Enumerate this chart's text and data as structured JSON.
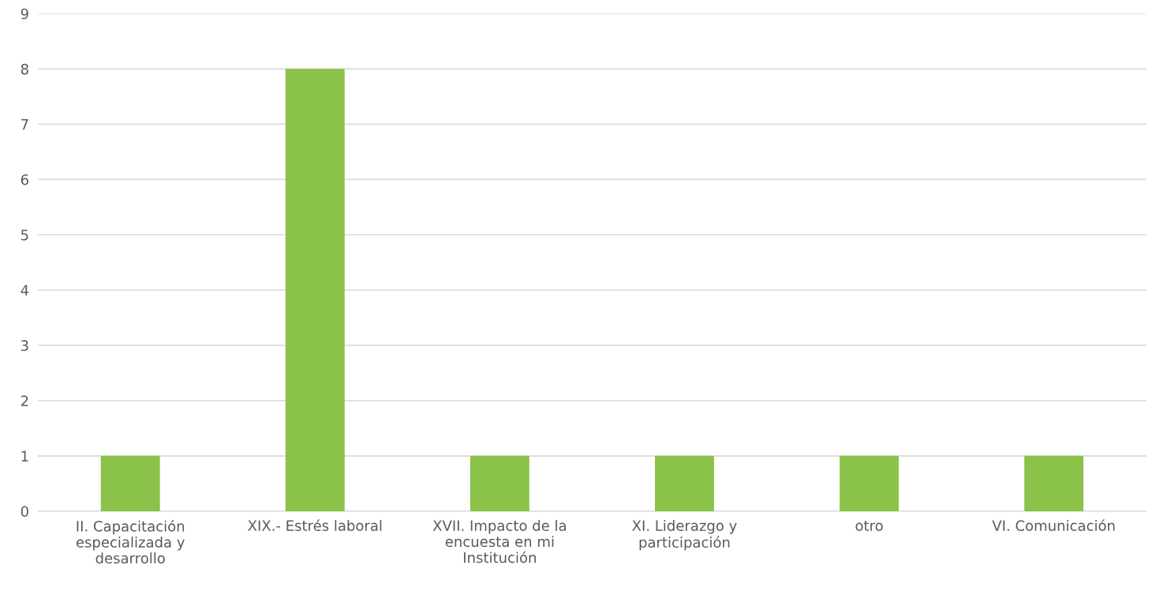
{
  "chart_data": {
    "type": "bar",
    "categories": [
      "II. Capacitación especializada y desarrollo",
      "XIX.- Estrés laboral",
      "XVII. Impacto de la encuesta en mi Institución",
      "XI. Liderazgo y participación",
      "otro",
      "VI. Comunicación"
    ],
    "values": [
      1,
      8,
      1,
      1,
      1,
      1
    ],
    "color": "#8bc24a",
    "ylim": [
      0,
      9
    ],
    "yticks": [
      0,
      1,
      2,
      3,
      4,
      5,
      6,
      7,
      8,
      9
    ],
    "grid": "y",
    "legend": false
  }
}
